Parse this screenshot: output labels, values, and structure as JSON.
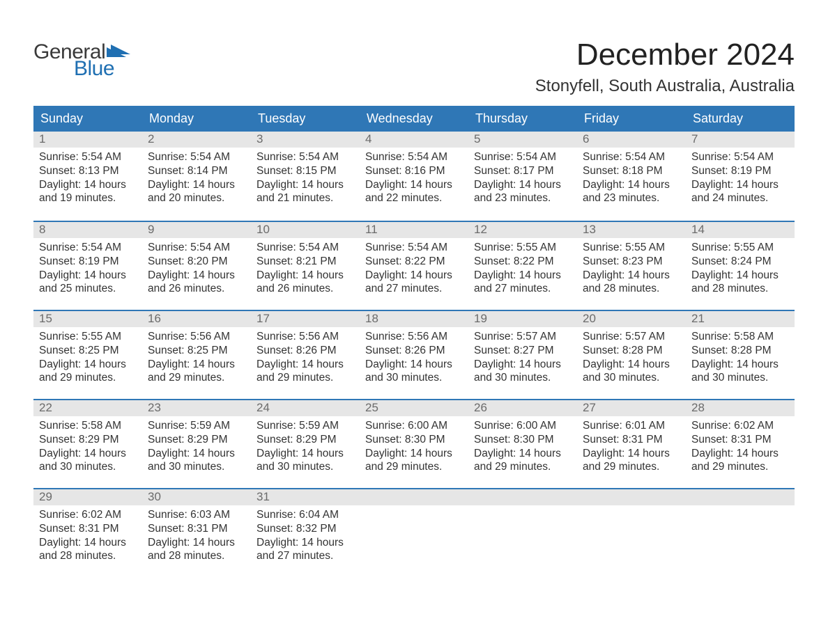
{
  "logo": {
    "word1": "General",
    "word2": "Blue",
    "flag_color": "#1f6fb2",
    "text_dark": "#3a3a3a"
  },
  "title": "December 2024",
  "location": "Stonyfell, South Australia, Australia",
  "colors": {
    "header_bg": "#2f77b6",
    "header_text": "#ffffff",
    "row_border": "#2f77b6",
    "daynum_bg": "#e6e6e6",
    "daynum_text": "#6b6b6b",
    "body_text": "#333333",
    "page_bg": "#ffffff"
  },
  "days_of_week": [
    "Sunday",
    "Monday",
    "Tuesday",
    "Wednesday",
    "Thursday",
    "Friday",
    "Saturday"
  ],
  "labels": {
    "sunrise": "Sunrise:",
    "sunset": "Sunset:",
    "daylight": "Daylight:"
  },
  "weeks": [
    [
      {
        "n": "1",
        "sunrise": "5:54 AM",
        "sunset": "8:13 PM",
        "daylight": "14 hours and 19 minutes."
      },
      {
        "n": "2",
        "sunrise": "5:54 AM",
        "sunset": "8:14 PM",
        "daylight": "14 hours and 20 minutes."
      },
      {
        "n": "3",
        "sunrise": "5:54 AM",
        "sunset": "8:15 PM",
        "daylight": "14 hours and 21 minutes."
      },
      {
        "n": "4",
        "sunrise": "5:54 AM",
        "sunset": "8:16 PM",
        "daylight": "14 hours and 22 minutes."
      },
      {
        "n": "5",
        "sunrise": "5:54 AM",
        "sunset": "8:17 PM",
        "daylight": "14 hours and 23 minutes."
      },
      {
        "n": "6",
        "sunrise": "5:54 AM",
        "sunset": "8:18 PM",
        "daylight": "14 hours and 23 minutes."
      },
      {
        "n": "7",
        "sunrise": "5:54 AM",
        "sunset": "8:19 PM",
        "daylight": "14 hours and 24 minutes."
      }
    ],
    [
      {
        "n": "8",
        "sunrise": "5:54 AM",
        "sunset": "8:19 PM",
        "daylight": "14 hours and 25 minutes."
      },
      {
        "n": "9",
        "sunrise": "5:54 AM",
        "sunset": "8:20 PM",
        "daylight": "14 hours and 26 minutes."
      },
      {
        "n": "10",
        "sunrise": "5:54 AM",
        "sunset": "8:21 PM",
        "daylight": "14 hours and 26 minutes."
      },
      {
        "n": "11",
        "sunrise": "5:54 AM",
        "sunset": "8:22 PM",
        "daylight": "14 hours and 27 minutes."
      },
      {
        "n": "12",
        "sunrise": "5:55 AM",
        "sunset": "8:22 PM",
        "daylight": "14 hours and 27 minutes."
      },
      {
        "n": "13",
        "sunrise": "5:55 AM",
        "sunset": "8:23 PM",
        "daylight": "14 hours and 28 minutes."
      },
      {
        "n": "14",
        "sunrise": "5:55 AM",
        "sunset": "8:24 PM",
        "daylight": "14 hours and 28 minutes."
      }
    ],
    [
      {
        "n": "15",
        "sunrise": "5:55 AM",
        "sunset": "8:25 PM",
        "daylight": "14 hours and 29 minutes."
      },
      {
        "n": "16",
        "sunrise": "5:56 AM",
        "sunset": "8:25 PM",
        "daylight": "14 hours and 29 minutes."
      },
      {
        "n": "17",
        "sunrise": "5:56 AM",
        "sunset": "8:26 PM",
        "daylight": "14 hours and 29 minutes."
      },
      {
        "n": "18",
        "sunrise": "5:56 AM",
        "sunset": "8:26 PM",
        "daylight": "14 hours and 30 minutes."
      },
      {
        "n": "19",
        "sunrise": "5:57 AM",
        "sunset": "8:27 PM",
        "daylight": "14 hours and 30 minutes."
      },
      {
        "n": "20",
        "sunrise": "5:57 AM",
        "sunset": "8:28 PM",
        "daylight": "14 hours and 30 minutes."
      },
      {
        "n": "21",
        "sunrise": "5:58 AM",
        "sunset": "8:28 PM",
        "daylight": "14 hours and 30 minutes."
      }
    ],
    [
      {
        "n": "22",
        "sunrise": "5:58 AM",
        "sunset": "8:29 PM",
        "daylight": "14 hours and 30 minutes."
      },
      {
        "n": "23",
        "sunrise": "5:59 AM",
        "sunset": "8:29 PM",
        "daylight": "14 hours and 30 minutes."
      },
      {
        "n": "24",
        "sunrise": "5:59 AM",
        "sunset": "8:29 PM",
        "daylight": "14 hours and 30 minutes."
      },
      {
        "n": "25",
        "sunrise": "6:00 AM",
        "sunset": "8:30 PM",
        "daylight": "14 hours and 29 minutes."
      },
      {
        "n": "26",
        "sunrise": "6:00 AM",
        "sunset": "8:30 PM",
        "daylight": "14 hours and 29 minutes."
      },
      {
        "n": "27",
        "sunrise": "6:01 AM",
        "sunset": "8:31 PM",
        "daylight": "14 hours and 29 minutes."
      },
      {
        "n": "28",
        "sunrise": "6:02 AM",
        "sunset": "8:31 PM",
        "daylight": "14 hours and 29 minutes."
      }
    ],
    [
      {
        "n": "29",
        "sunrise": "6:02 AM",
        "sunset": "8:31 PM",
        "daylight": "14 hours and 28 minutes."
      },
      {
        "n": "30",
        "sunrise": "6:03 AM",
        "sunset": "8:31 PM",
        "daylight": "14 hours and 28 minutes."
      },
      {
        "n": "31",
        "sunrise": "6:04 AM",
        "sunset": "8:32 PM",
        "daylight": "14 hours and 27 minutes."
      },
      null,
      null,
      null,
      null
    ]
  ]
}
